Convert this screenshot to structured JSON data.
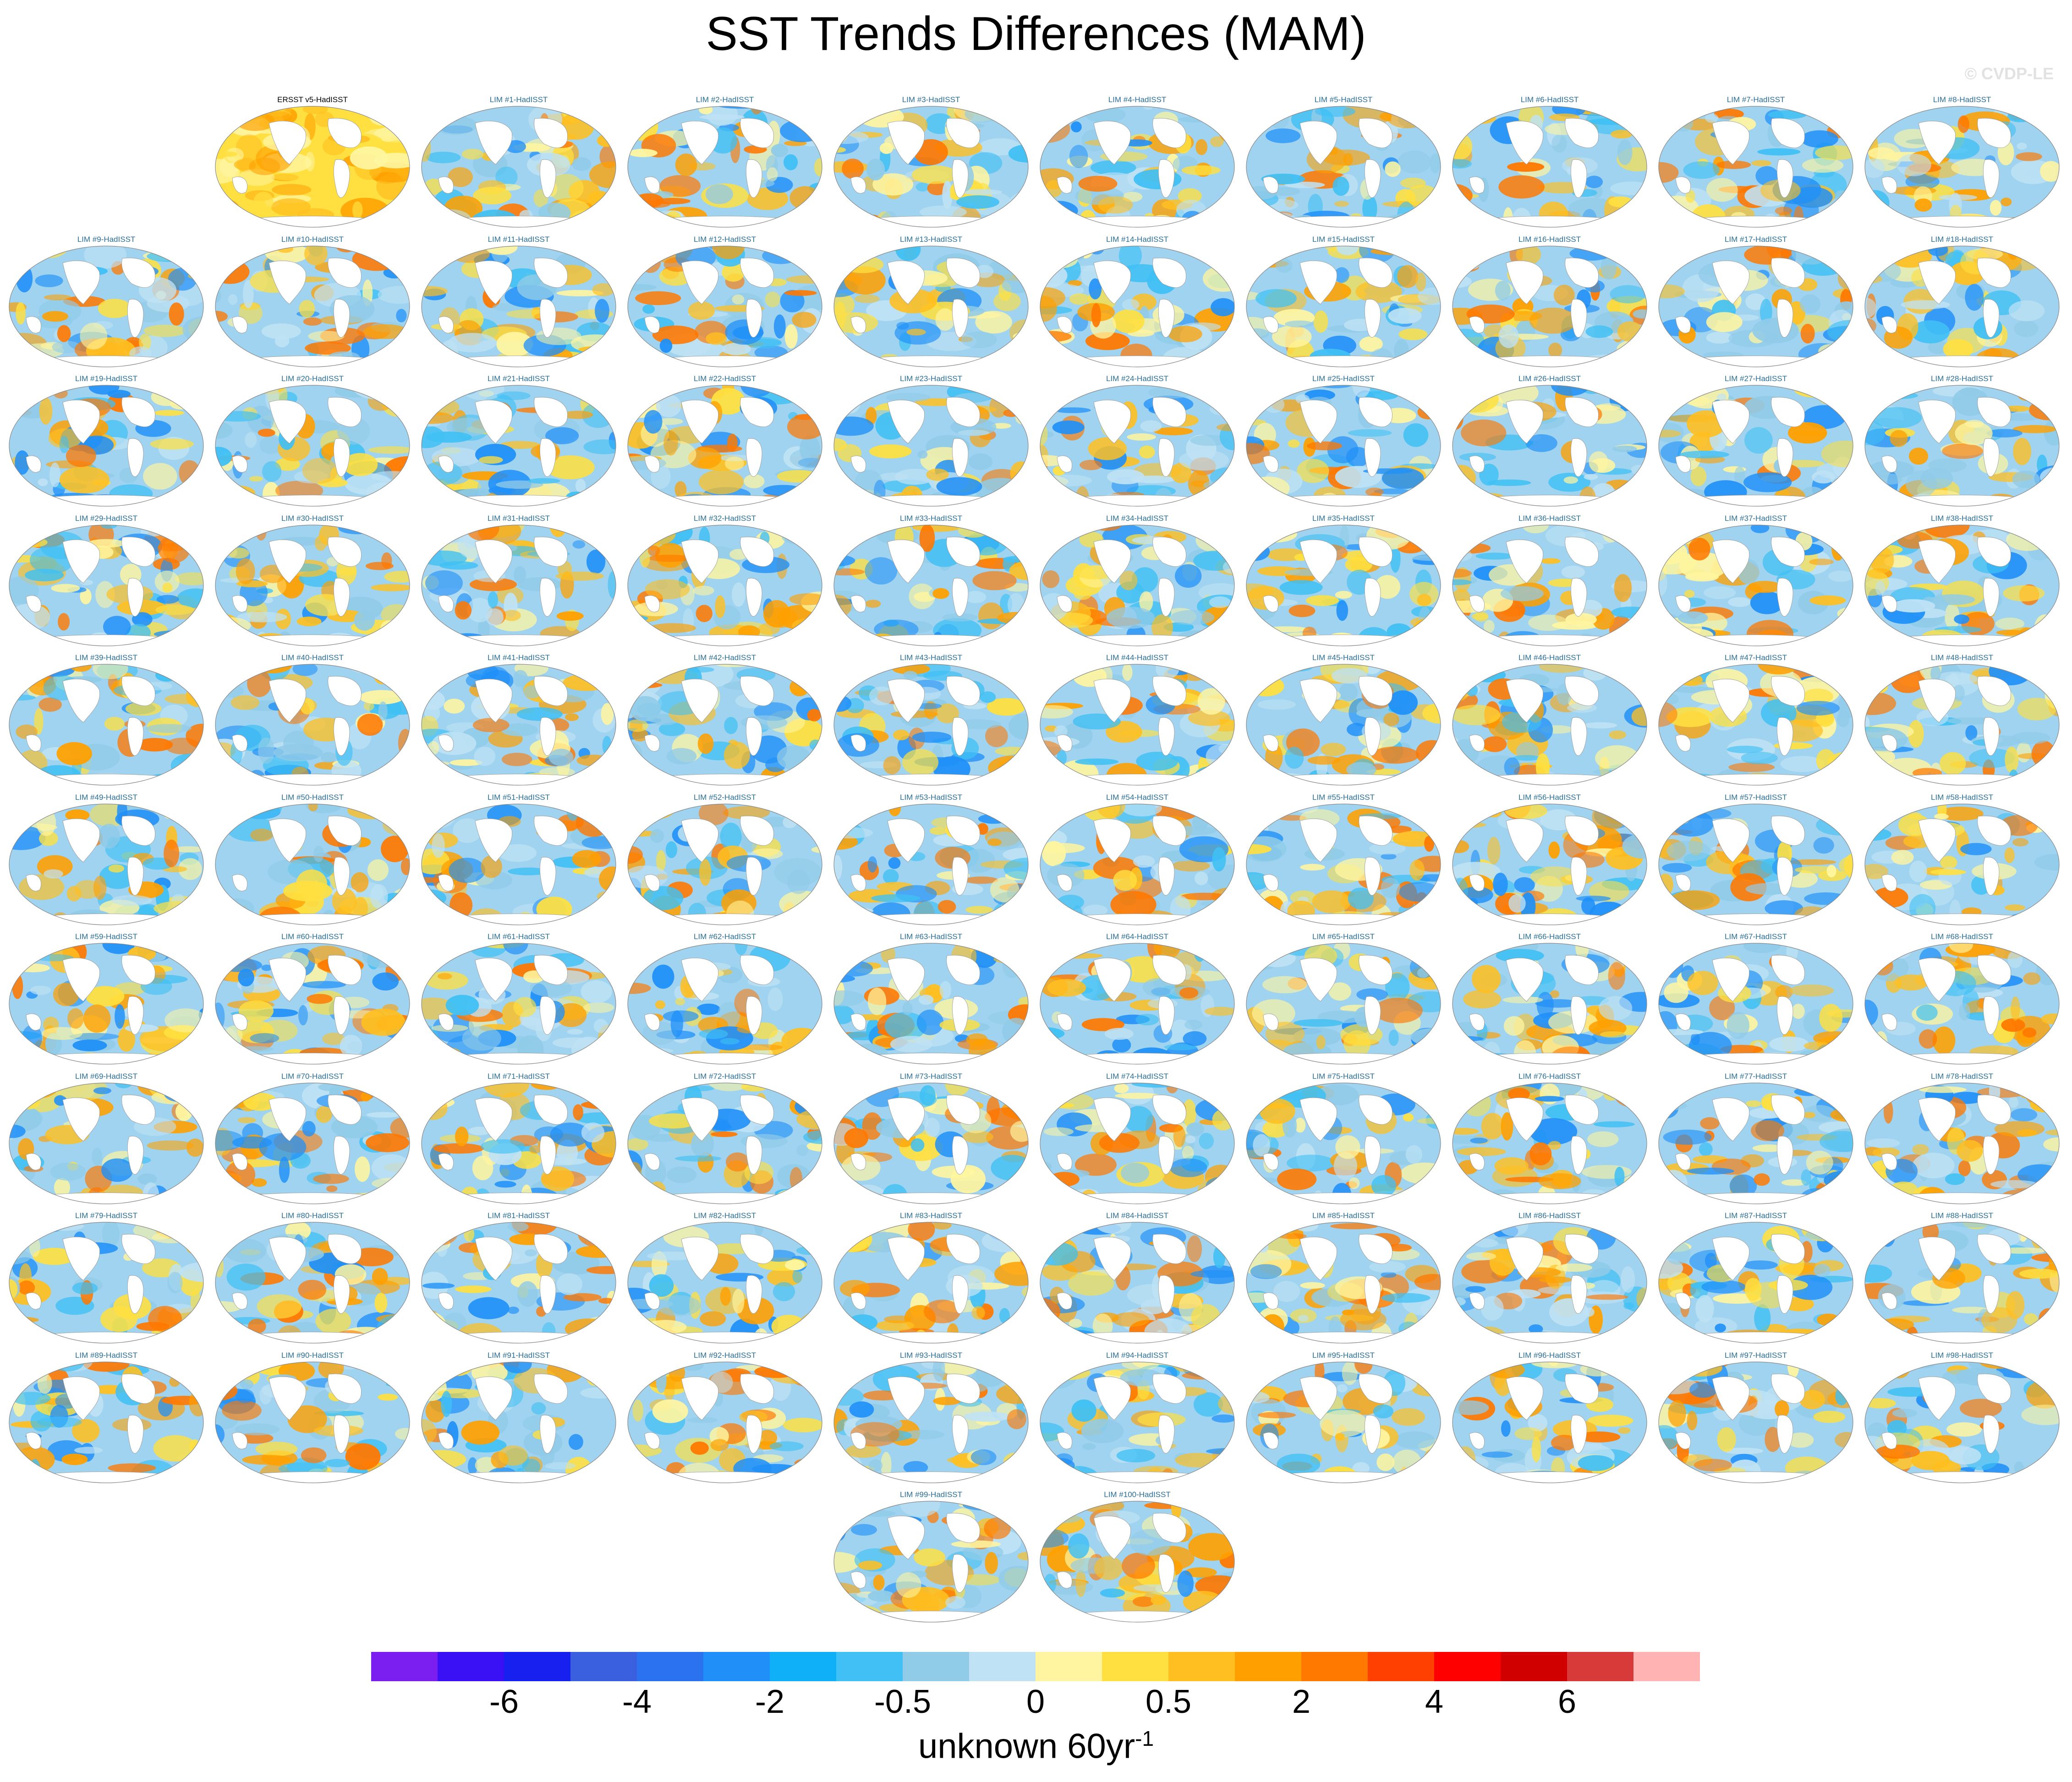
{
  "title": "SST Trends Differences (MAM)",
  "credit": "© CVDP-LE",
  "chart_data": {
    "type": "heatmap",
    "title": "SST Trends Differences (MAM)",
    "description_type": "panel grid of global map heatmaps (Hammer projection)",
    "panels": [
      "ERSST v5-HadISST",
      "LIM #1-HadISST",
      "LIM #2-HadISST",
      "LIM #3-HadISST",
      "LIM #4-HadISST",
      "LIM #5-HadISST",
      "LIM #6-HadISST",
      "LIM #7-HadISST",
      "LIM #8-HadISST",
      "LIM #9-HadISST",
      "LIM #10-HadISST",
      "LIM #11-HadISST",
      "LIM #12-HadISST",
      "LIM #13-HadISST",
      "LIM #14-HadISST",
      "LIM #15-HadISST",
      "LIM #16-HadISST",
      "LIM #17-HadISST",
      "LIM #18-HadISST",
      "LIM #19-HadISST",
      "LIM #20-HadISST",
      "LIM #21-HadISST",
      "LIM #22-HadISST",
      "LIM #23-HadISST",
      "LIM #24-HadISST",
      "LIM #25-HadISST",
      "LIM #26-HadISST",
      "LIM #27-HadISST",
      "LIM #28-HadISST",
      "LIM #29-HadISST",
      "LIM #30-HadISST",
      "LIM #31-HadISST",
      "LIM #32-HadISST",
      "LIM #33-HadISST",
      "LIM #34-HadISST",
      "LIM #35-HadISST",
      "LIM #36-HadISST",
      "LIM #37-HadISST",
      "LIM #38-HadISST",
      "LIM #39-HadISST",
      "LIM #40-HadISST",
      "LIM #41-HadISST",
      "LIM #42-HadISST",
      "LIM #43-HadISST",
      "LIM #44-HadISST",
      "LIM #45-HadISST",
      "LIM #46-HadISST",
      "LIM #47-HadISST",
      "LIM #48-HadISST",
      "LIM #49-HadISST",
      "LIM #50-HadISST",
      "LIM #51-HadISST",
      "LIM #52-HadISST",
      "LIM #53-HadISST",
      "LIM #54-HadISST",
      "LIM #55-HadISST",
      "LIM #56-HadISST",
      "LIM #57-HadISST",
      "LIM #58-HadISST",
      "LIM #59-HadISST",
      "LIM #60-HadISST",
      "LIM #61-HadISST",
      "LIM #62-HadISST",
      "LIM #63-HadISST",
      "LIM #64-HadISST",
      "LIM #65-HadISST",
      "LIM #66-HadISST",
      "LIM #67-HadISST",
      "LIM #68-HadISST",
      "LIM #69-HadISST",
      "LIM #70-HadISST",
      "LIM #71-HadISST",
      "LIM #72-HadISST",
      "LIM #73-HadISST",
      "LIM #74-HadISST",
      "LIM #75-HadISST",
      "LIM #76-HadISST",
      "LIM #77-HadISST",
      "LIM #78-HadISST",
      "LIM #79-HadISST",
      "LIM #80-HadISST",
      "LIM #81-HadISST",
      "LIM #82-HadISST",
      "LIM #83-HadISST",
      "LIM #84-HadISST",
      "LIM #85-HadISST",
      "LIM #86-HadISST",
      "LIM #87-HadISST",
      "LIM #88-HadISST",
      "LIM #89-HadISST",
      "LIM #90-HadISST",
      "LIM #91-HadISST",
      "LIM #92-HadISST",
      "LIM #93-HadISST",
      "LIM #94-HadISST",
      "LIM #95-HadISST",
      "LIM #96-HadISST",
      "LIM #97-HadISST",
      "LIM #98-HadISST",
      "LIM #99-HadISST",
      "LIM #100-HadISST"
    ],
    "colorbar": {
      "colors": [
        "#7a1ff0",
        "#3a10f5",
        "#1820f0",
        "#3a60e0",
        "#2a72f0",
        "#2090f8",
        "#10b0f8",
        "#40c0f4",
        "#90cbe8",
        "#bfe2f4",
        "#fff5a0",
        "#ffe040",
        "#ffbf20",
        "#ffa000",
        "#ff7800",
        "#ff4000",
        "#ff0000",
        "#d00000",
        "#d83a3a",
        "#ffb3b3"
      ],
      "tick_labels": [
        "-6",
        "-4",
        "-2",
        "-0.5",
        "0",
        "0.5",
        "2",
        "4",
        "6"
      ],
      "units_main": "unknown 60yr",
      "units_sup": "-1"
    }
  }
}
